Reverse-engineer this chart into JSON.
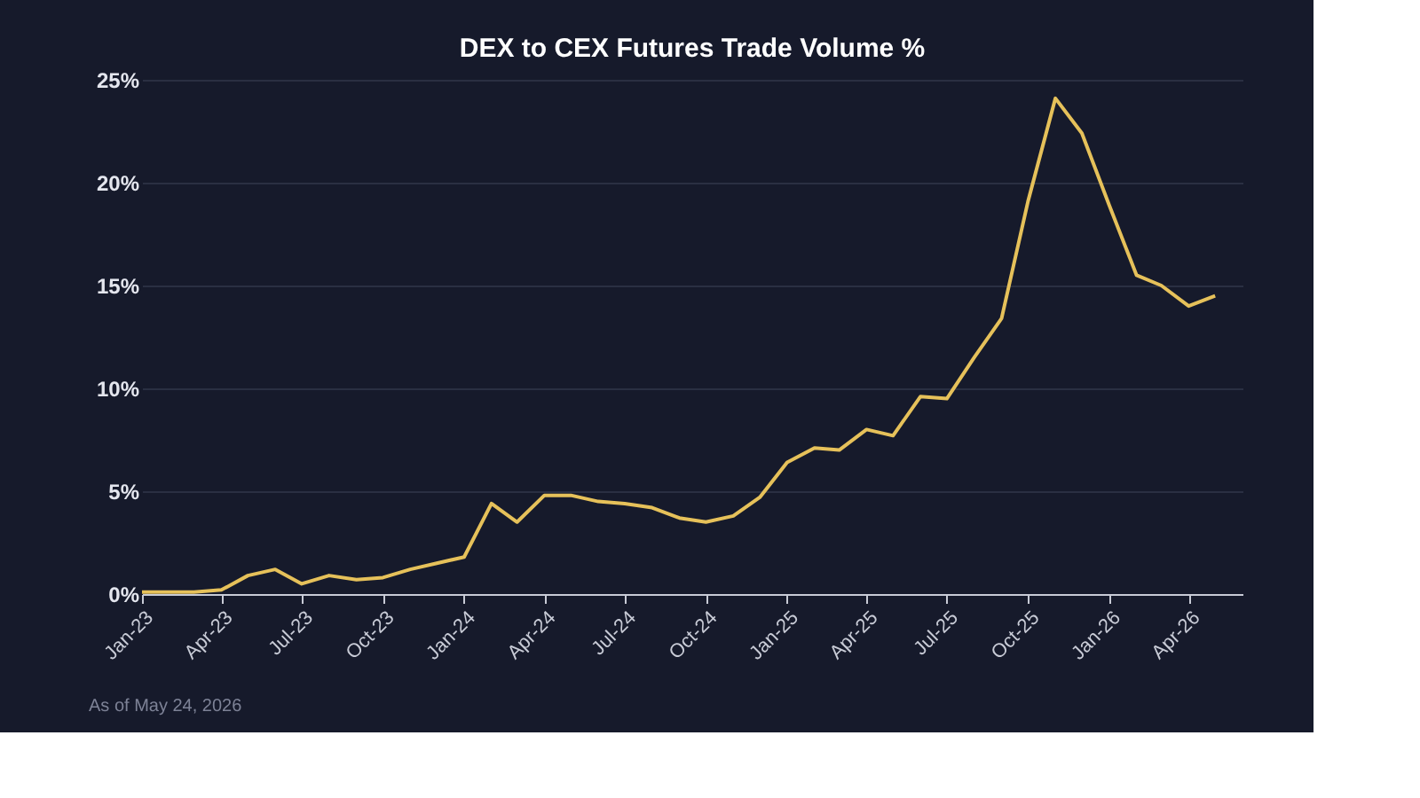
{
  "chart_data": {
    "type": "line",
    "title": "DEX to CEX Futures Trade Volume %",
    "x": [
      "2023-01",
      "2023-02",
      "2023-03",
      "2023-04",
      "2023-05",
      "2023-06",
      "2023-07",
      "2023-08",
      "2023-09",
      "2023-10",
      "2023-11",
      "2023-12",
      "2024-01",
      "2024-02",
      "2024-03",
      "2024-04",
      "2024-05",
      "2024-06",
      "2024-07",
      "2024-08",
      "2024-09",
      "2024-10",
      "2024-11",
      "2024-12",
      "2025-01",
      "2025-02",
      "2025-03",
      "2025-04",
      "2025-05",
      "2025-06",
      "2025-07",
      "2025-08",
      "2025-09",
      "2025-10",
      "2025-11",
      "2025-12",
      "2026-01",
      "2026-02",
      "2026-03",
      "2026-04",
      "2026-05"
    ],
    "series": [
      {
        "color": "#e6c15a",
        "values": [
          0.1,
          0.1,
          0.1,
          0.2,
          0.9,
          1.2,
          0.5,
          0.9,
          0.7,
          0.8,
          1.2,
          1.5,
          1.8,
          4.4,
          3.5,
          4.8,
          4.8,
          4.5,
          4.4,
          4.2,
          3.7,
          3.5,
          3.8,
          4.7,
          6.4,
          7.1,
          7.0,
          8.0,
          7.7,
          9.6,
          9.5,
          11.5,
          13.4,
          19.1,
          24.1,
          22.4,
          18.9,
          15.5,
          15.0,
          14.0,
          14.5
        ]
      }
    ],
    "xlim": [
      "2023-01",
      "2026-06"
    ],
    "xticks": [
      {
        "value": "2023-01",
        "label": "Jan-23"
      },
      {
        "value": "2023-04",
        "label": "Apr-23"
      },
      {
        "value": "2023-07",
        "label": "Jul-23"
      },
      {
        "value": "2023-10",
        "label": "Oct-23"
      },
      {
        "value": "2024-01",
        "label": "Jan-24"
      },
      {
        "value": "2024-04",
        "label": "Apr-24"
      },
      {
        "value": "2024-07",
        "label": "Jul-24"
      },
      {
        "value": "2024-10",
        "label": "Oct-24"
      },
      {
        "value": "2025-01",
        "label": "Jan-25"
      },
      {
        "value": "2025-04",
        "label": "Apr-25"
      },
      {
        "value": "2025-07",
        "label": "Jul-25"
      },
      {
        "value": "2025-10",
        "label": "Oct-25"
      },
      {
        "value": "2026-01",
        "label": "Jan-26"
      },
      {
        "value": "2026-04",
        "label": "Apr-26"
      }
    ],
    "ylim": [
      0,
      25
    ],
    "yticks": [
      {
        "value": 0,
        "label": "0%"
      },
      {
        "value": 5,
        "label": "5%"
      },
      {
        "value": 10,
        "label": "10%"
      },
      {
        "value": 15,
        "label": "15%"
      },
      {
        "value": 20,
        "label": "20%"
      },
      {
        "value": 25,
        "label": "25%"
      }
    ],
    "grid": "y",
    "legend": false,
    "marker": "none",
    "line_style": "solid",
    "annotations": [
      "As of May 24, 2026"
    ]
  }
}
